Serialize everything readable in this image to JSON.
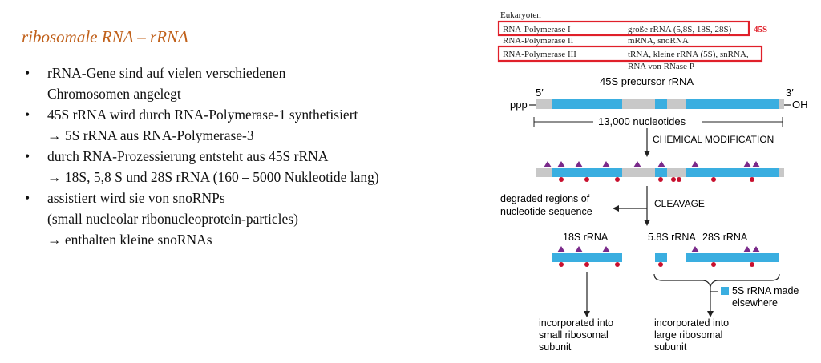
{
  "slide": {
    "title": "ribosomale RNA – rRNA",
    "bullets": [
      {
        "lines": [
          "rRNA-Gene sind auf vielen verschiedenen",
          "Chromosomen angelegt"
        ]
      },
      {
        "lines": [
          "45S rRNA wird durch RNA-Polymerase-1 synthetisiert",
          "→ 5S rRNA aus RNA-Polymerase-3"
        ]
      },
      {
        "lines": [
          "durch RNA-Prozessierung entsteht aus 45S rRNA",
          "→ 18S, 5,8 S und 28S rRNA (160 – 5000 Nukleotide lang)"
        ]
      },
      {
        "lines": [
          "assistiert wird sie von snoRNPs",
          "(small nucleolar ribonucleoprotein-particles)",
          "→ enthalten kleine snoRNAs"
        ]
      }
    ]
  },
  "table": {
    "header": "Eukaryoten",
    "rows": [
      {
        "polymerase": "RNA-Polymerase I",
        "product": "große rRNA (5,8S, 18S, 28S)",
        "note": "45S"
      },
      {
        "polymerase": "RNA-Polymerase II",
        "product": "mRNA, snoRNA"
      },
      {
        "polymerase": "RNA-Polymerase III",
        "product": "tRNA, kleine rRNA (5S), snRNA,",
        "product2": "RNA von RNase P"
      }
    ],
    "highlight_color": "#e0202a"
  },
  "diagram": {
    "precursor_label": "45S precursor rRNA",
    "five_prime": "5′",
    "three_prime": "3′",
    "ppp": "ppp",
    "oh": "OH",
    "length": "13,000 nucleotides",
    "step1": "CHEMICAL MODIFICATION",
    "step2": "CLEAVAGE",
    "degraded_1": "degraded regions of",
    "degraded_2": "nucleotide sequence",
    "label_18s": "18S rRNA",
    "label_58s": "5.8S rRNA",
    "label_28s": "28S rRNA",
    "made_1": "5S rRNA made",
    "made_2": "elsewhere",
    "small_1": "incorporated into",
    "small_2": "small ribosomal",
    "small_3": "subunit",
    "large_1": "incorporated into",
    "large_2": "large ribosomal",
    "large_3": "subunit",
    "rna_color": "#3aaee0",
    "spacer_color": "#c8c8c8",
    "triangle_color": "#7a2a8a",
    "dot_color": "#c8102e"
  }
}
